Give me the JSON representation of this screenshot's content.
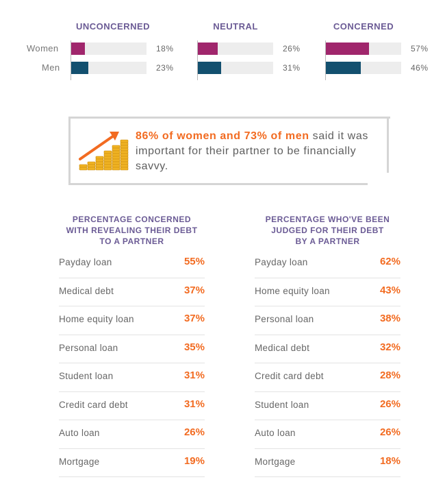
{
  "chart_data": [
    {
      "type": "bar",
      "orientation": "horizontal",
      "panels": [
        {
          "title": "UNCONCERNED",
          "values": {
            "Women": 18,
            "Men": 23
          },
          "labels": {
            "Women": "18%",
            "Men": "23%"
          }
        },
        {
          "title": "NEUTRAL",
          "values": {
            "Women": 26,
            "Men": 31
          },
          "labels": {
            "Women": "26%",
            "Men": "31%"
          }
        },
        {
          "title": "CONCERNED",
          "values": {
            "Women": 57,
            "Men": 46
          },
          "labels": {
            "Women": "57%",
            "Men": "46%"
          }
        }
      ],
      "categories": [
        "Women",
        "Men"
      ],
      "colors": {
        "Women": "#a0266c",
        "Men": "#13506f",
        "track": "#ededed"
      },
      "xlim": [
        0,
        100
      ]
    },
    {
      "type": "table",
      "title": "PERCENTAGE CONCERNED WITH REVEALING THEIR DEBT TO A PARTNER",
      "rows": [
        {
          "label": "Payday loan",
          "value": "55%"
        },
        {
          "label": "Medical debt",
          "value": "37%"
        },
        {
          "label": "Home equity loan",
          "value": "37%"
        },
        {
          "label": "Personal loan",
          "value": "35%"
        },
        {
          "label": "Student loan",
          "value": "31%"
        },
        {
          "label": "Credit card debt",
          "value": "31%"
        },
        {
          "label": "Auto loan",
          "value": "26%"
        },
        {
          "label": "Mortgage",
          "value": "19%"
        }
      ]
    },
    {
      "type": "table",
      "title": "PERCENTAGE WHO'VE BEEN JUDGED FOR THEIR DEBT BY A PARTNER",
      "rows": [
        {
          "label": "Payday loan",
          "value": "62%"
        },
        {
          "label": "Home equity loan",
          "value": "43%"
        },
        {
          "label": "Personal loan",
          "value": "38%"
        },
        {
          "label": "Medical debt",
          "value": "32%"
        },
        {
          "label": "Credit card debt",
          "value": "28%"
        },
        {
          "label": "Student loan",
          "value": "26%"
        },
        {
          "label": "Auto loan",
          "value": "26%"
        },
        {
          "label": "Mortgage",
          "value": "18%"
        }
      ]
    }
  ],
  "callout": {
    "highlight": "86% of women and 73% of men",
    "text": " said it was important for their partner to be financially savvy.",
    "icon": "rising-coins-chart-icon",
    "colors": {
      "highlight": "#f26b21",
      "arrow": "#f26b21",
      "coin": "#f0b323"
    }
  },
  "tables": {
    "left": {
      "title_line1_a": "PERCENTAGE ",
      "title_line1_b": "CONCERNED",
      "title_line2": "WITH REVEALING THEIR DEBT",
      "title_line3": "TO A PARTNER"
    },
    "right": {
      "title_line1": "PERCENTAGE WHO'VE BEEN",
      "title_line2": "JUDGED FOR THEIR DEBT",
      "title_line3": "BY A PARTNER"
    }
  }
}
